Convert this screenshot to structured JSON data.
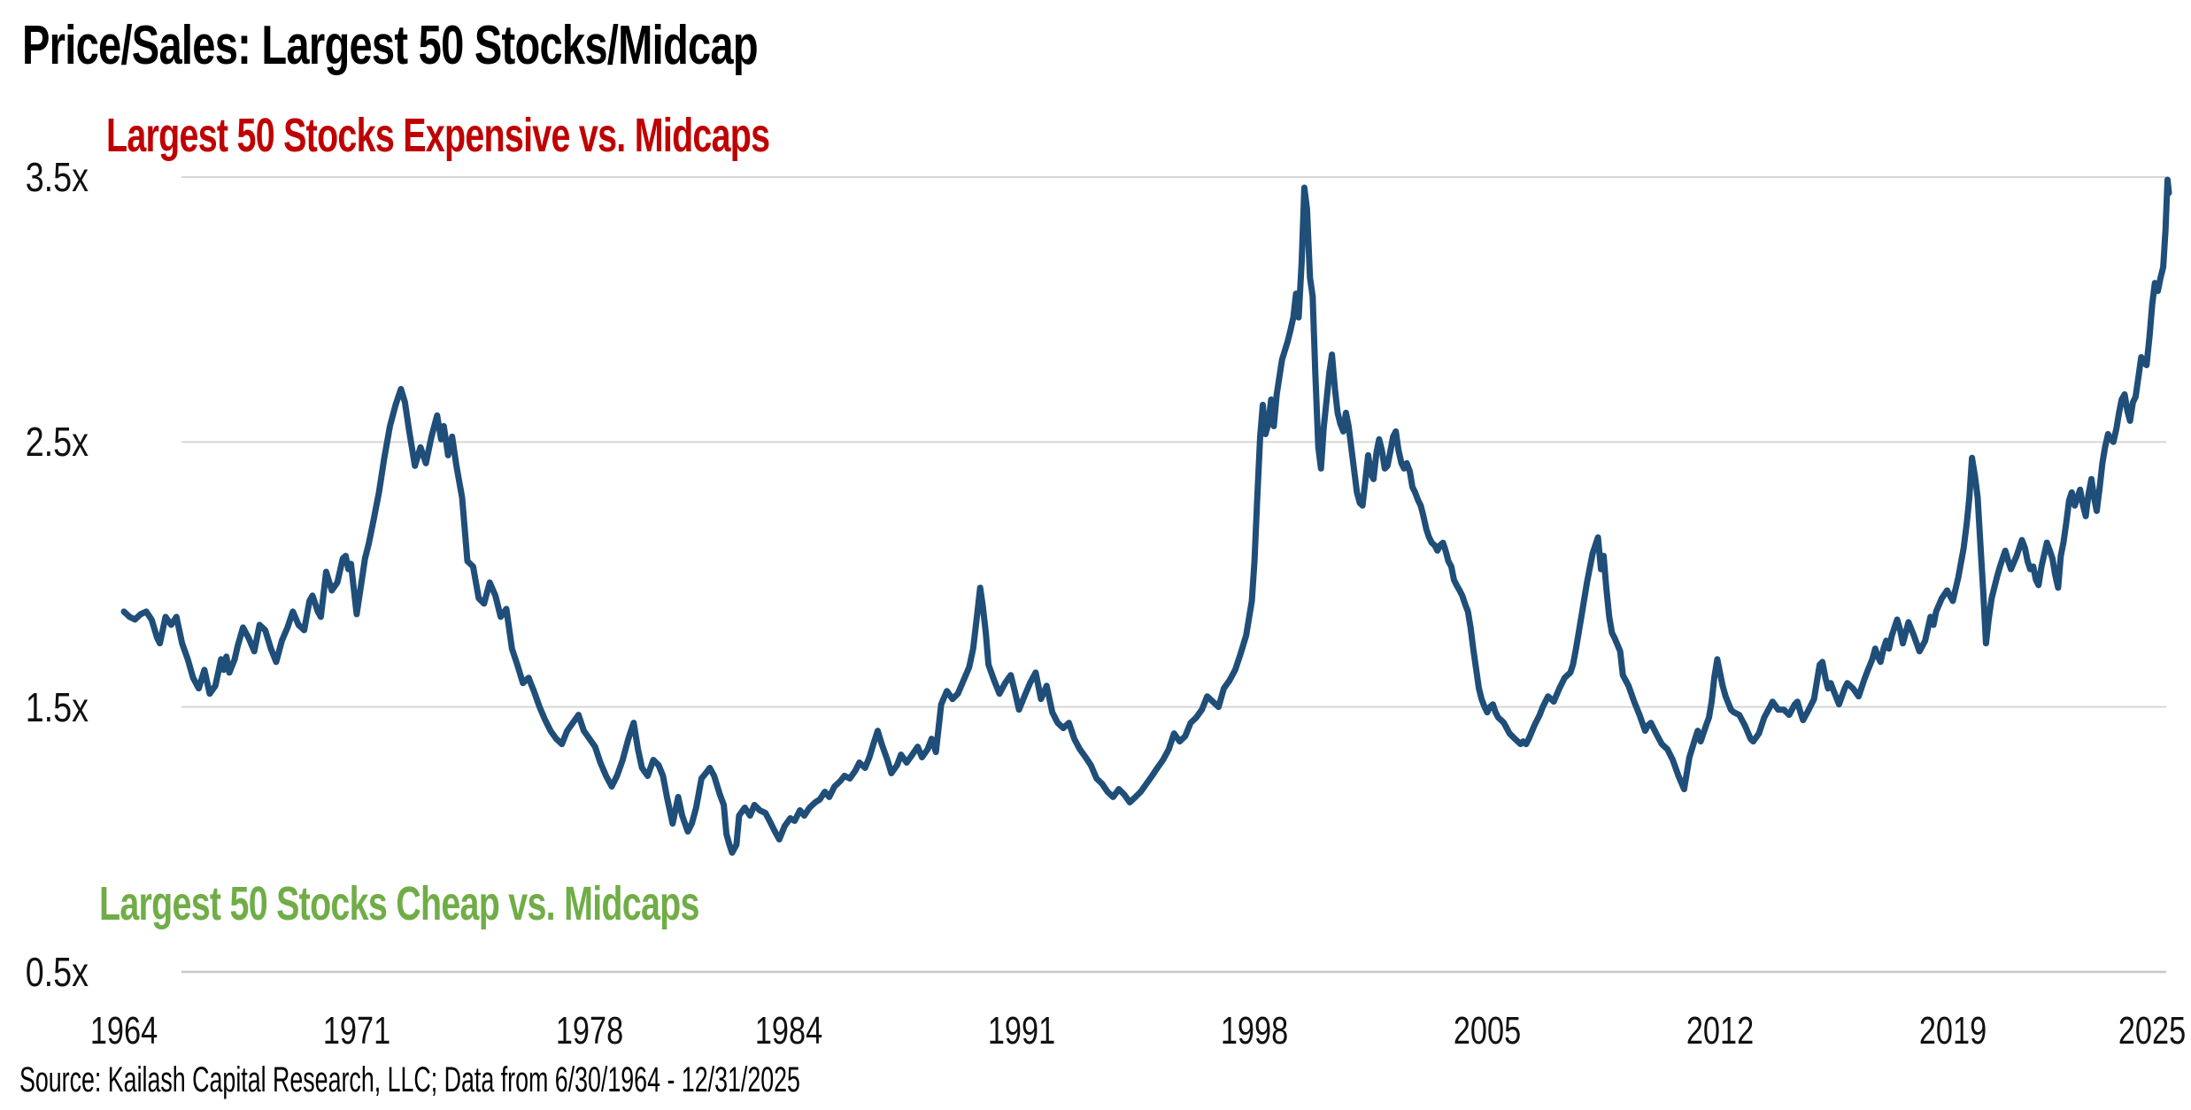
{
  "header": {
    "title": "Price/Sales: Largest 50 Stocks/Midcap"
  },
  "footer": {
    "source": "Source: Kailash Capital Research, LLC; Data from 6/30/1964 - 12/31/2025"
  },
  "chart_data": {
    "type": "line",
    "title": "Price/Sales: Largest 50 Stocks/Midcap",
    "xlabel": "",
    "ylabel": "",
    "legend": "none",
    "grid": "horizontal",
    "background_color": "#FFFFFF",
    "line_color": "#1F4E79",
    "gridline_color": "#D6D6D6",
    "bottom_gridline_color": "#C8C8C8",
    "xlim": [
      1964.5,
      2026.0
    ],
    "ylim": [
      0.5,
      3.5
    ],
    "x_ticks": [
      1964,
      1971,
      1978,
      1984,
      1991,
      1998,
      2005,
      2012,
      2019,
      2025
    ],
    "y_ticks": [
      {
        "value": 3.5,
        "label": "3.5x"
      },
      {
        "value": 2.5,
        "label": "2.5x"
      },
      {
        "value": 1.5,
        "label": "1.5x"
      },
      {
        "value": 0.5,
        "label": "0.5x"
      }
    ],
    "annotations": [
      {
        "text": "Largest 50 Stocks Expensive vs. Midcaps",
        "color": "#C00000",
        "position": "top-left"
      },
      {
        "text": "Largest 50 Stocks Cheap vs. Midcaps",
        "color": "#70AD47",
        "position": "bottom-left"
      }
    ],
    "series": [
      {
        "name": "Price/Sales: Largest 50 Stocks relative to Midcap",
        "color": "#1F4E79",
        "x": [
          1964.5,
          1964.67,
          1964.83,
          1965.0,
          1965.17,
          1965.33,
          1965.5,
          1965.58,
          1965.75,
          1965.92,
          1966.08,
          1966.25,
          1966.42,
          1966.58,
          1966.75,
          1966.92,
          1967.08,
          1967.25,
          1967.42,
          1967.5,
          1967.58,
          1967.67,
          1967.83,
          1967.92,
          1968.08,
          1968.25,
          1968.42,
          1968.58,
          1968.75,
          1968.92,
          1969.08,
          1969.25,
          1969.42,
          1969.58,
          1969.75,
          1969.92,
          1970.08,
          1970.17,
          1970.33,
          1970.42,
          1970.58,
          1970.75,
          1970.92,
          1971.08,
          1971.17,
          1971.25,
          1971.33,
          1971.5,
          1971.62,
          1971.75,
          1971.87,
          1972.0,
          1972.17,
          1972.33,
          1972.5,
          1972.67,
          1972.83,
          1972.95,
          1973.08,
          1973.25,
          1973.42,
          1973.58,
          1973.75,
          1973.92,
          1974.04,
          1974.12,
          1974.25,
          1974.37,
          1974.5,
          1974.67,
          1974.83,
          1975.0,
          1975.17,
          1975.33,
          1975.5,
          1975.67,
          1975.83,
          1976.0,
          1976.17,
          1976.33,
          1976.5,
          1976.67,
          1976.83,
          1977.0,
          1977.17,
          1977.33,
          1977.5,
          1977.67,
          1977.83,
          1978.0,
          1978.17,
          1978.33,
          1978.5,
          1978.67,
          1978.83,
          1979.0,
          1979.17,
          1979.33,
          1979.5,
          1979.67,
          1979.83,
          1979.96,
          1980.08,
          1980.25,
          1980.42,
          1980.58,
          1980.71,
          1980.83,
          1981.0,
          1981.17,
          1981.29,
          1981.46,
          1981.58,
          1981.71,
          1981.87,
          1982.0,
          1982.12,
          1982.25,
          1982.42,
          1982.54,
          1982.62,
          1982.71,
          1982.79,
          1982.92,
          1983.0,
          1983.17,
          1983.33,
          1983.46,
          1983.62,
          1983.79,
          1983.92,
          1984.08,
          1984.21,
          1984.37,
          1984.54,
          1984.67,
          1984.83,
          1984.96,
          1985.12,
          1985.29,
          1985.42,
          1985.58,
          1985.71,
          1985.87,
          1986.04,
          1986.17,
          1986.33,
          1986.5,
          1986.62,
          1986.79,
          1986.92,
          1987.04,
          1987.17,
          1987.29,
          1987.46,
          1987.58,
          1987.75,
          1987.87,
          1988.04,
          1988.21,
          1988.37,
          1988.5,
          1988.67,
          1988.79,
          1988.92,
          1989.08,
          1989.25,
          1989.42,
          1989.58,
          1989.75,
          1989.92,
          1990.04,
          1990.17,
          1990.25,
          1990.33,
          1990.42,
          1990.5,
          1990.67,
          1990.83,
          1991.0,
          1991.17,
          1991.29,
          1991.42,
          1991.58,
          1991.75,
          1991.92,
          1992.08,
          1992.25,
          1992.42,
          1992.58,
          1992.75,
          1992.92,
          1993.08,
          1993.25,
          1993.42,
          1993.58,
          1993.75,
          1993.92,
          1994.08,
          1994.25,
          1994.42,
          1994.58,
          1994.75,
          1994.92,
          1995.08,
          1995.25,
          1995.42,
          1995.58,
          1995.75,
          1995.92,
          1996.08,
          1996.25,
          1996.42,
          1996.58,
          1996.75,
          1996.92,
          1997.08,
          1997.25,
          1997.42,
          1997.58,
          1997.75,
          1997.92,
          1998.08,
          1998.25,
          1998.42,
          1998.5,
          1998.58,
          1998.67,
          1998.75,
          1998.83,
          1998.92,
          1999.0,
          1999.08,
          1999.17,
          1999.33,
          1999.5,
          1999.58,
          1999.67,
          1999.75,
          1999.83,
          1999.92,
          2000.0,
          2000.08,
          2000.17,
          2000.25,
          2000.33,
          2000.42,
          2000.5,
          2000.58,
          2000.67,
          2000.75,
          2000.83,
          2000.92,
          2001.0,
          2001.08,
          2001.17,
          2001.25,
          2001.33,
          2001.42,
          2001.5,
          2001.58,
          2001.67,
          2001.75,
          2001.83,
          2001.92,
          2002.0,
          2002.08,
          2002.17,
          2002.25,
          2002.33,
          2002.42,
          2002.5,
          2002.58,
          2002.67,
          2002.75,
          2002.83,
          2002.92,
          2003.0,
          2003.08,
          2003.17,
          2003.25,
          2003.33,
          2003.42,
          2003.5,
          2003.58,
          2003.67,
          2003.75,
          2003.83,
          2003.92,
          2004.0,
          2004.08,
          2004.17,
          2004.25,
          2004.33,
          2004.42,
          2004.5,
          2004.58,
          2004.67,
          2004.75,
          2004.83,
          2004.92,
          2005.0,
          2005.08,
          2005.17,
          2005.25,
          2005.33,
          2005.42,
          2005.5,
          2005.58,
          2005.67,
          2005.75,
          2005.83,
          2005.92,
          2006.0,
          2006.17,
          2006.33,
          2006.5,
          2006.58,
          2006.67,
          2006.75,
          2006.92,
          2007.08,
          2007.17,
          2007.33,
          2007.42,
          2007.5,
          2007.67,
          2007.83,
          2008.0,
          2008.08,
          2008.17,
          2008.33,
          2008.5,
          2008.67,
          2008.83,
          2008.92,
          2009.0,
          2009.08,
          2009.17,
          2009.25,
          2009.33,
          2009.5,
          2009.58,
          2009.75,
          2009.92,
          2010.08,
          2010.25,
          2010.33,
          2010.42,
          2010.58,
          2010.75,
          2010.92,
          2011.08,
          2011.25,
          2011.42,
          2011.5,
          2011.58,
          2011.75,
          2011.83,
          2011.92,
          2012.08,
          2012.17,
          2012.25,
          2012.33,
          2012.42,
          2012.5,
          2012.58,
          2012.67,
          2012.83,
          2012.92,
          2013.08,
          2013.25,
          2013.42,
          2013.5,
          2013.67,
          2013.83,
          2014.0,
          2014.08,
          2014.25,
          2014.42,
          2014.58,
          2014.75,
          2014.83,
          2014.92,
          2015.0,
          2015.17,
          2015.33,
          2015.42,
          2015.5,
          2015.58,
          2015.67,
          2015.75,
          2015.83,
          2015.92,
          2016.08,
          2016.25,
          2016.33,
          2016.5,
          2016.67,
          2016.83,
          2016.92,
          2017.08,
          2017.17,
          2017.25,
          2017.33,
          2017.42,
          2017.5,
          2017.58,
          2017.67,
          2017.83,
          2017.92,
          2018.0,
          2018.17,
          2018.33,
          2018.5,
          2018.67,
          2018.83,
          2018.92,
          2019.0,
          2019.17,
          2019.33,
          2019.5,
          2019.67,
          2019.83,
          2019.92,
          2020.0,
          2020.08,
          2020.17,
          2020.25,
          2020.33,
          2020.42,
          2020.5,
          2020.58,
          2020.67,
          2020.83,
          2020.92,
          2021.0,
          2021.08,
          2021.17,
          2021.25,
          2021.42,
          2021.58,
          2021.67,
          2021.75,
          2021.83,
          2021.92,
          2022.0,
          2022.08,
          2022.17,
          2022.33,
          2022.42,
          2022.5,
          2022.58,
          2022.67,
          2022.75,
          2022.83,
          2022.92,
          2023.0,
          2023.08,
          2023.17,
          2023.25,
          2023.33,
          2023.42,
          2023.5,
          2023.58,
          2023.67,
          2023.75,
          2023.83,
          2023.92,
          2024.0,
          2024.08,
          2024.17,
          2024.25,
          2024.33,
          2024.42,
          2024.5,
          2024.58,
          2024.67,
          2024.75,
          2024.83,
          2024.92,
          2025.0,
          2025.08,
          2025.17,
          2025.25,
          2025.33,
          2025.42,
          2025.5,
          2025.58,
          2025.67,
          2025.75,
          2025.83,
          2025.9,
          2025.96,
          2026.0
        ],
        "values": [
          1.86,
          1.84,
          1.83,
          1.85,
          1.86,
          1.83,
          1.76,
          1.74,
          1.84,
          1.81,
          1.84,
          1.74,
          1.68,
          1.61,
          1.57,
          1.64,
          1.55,
          1.58,
          1.68,
          1.64,
          1.69,
          1.63,
          1.68,
          1.73,
          1.8,
          1.76,
          1.71,
          1.81,
          1.79,
          1.72,
          1.67,
          1.75,
          1.8,
          1.86,
          1.81,
          1.79,
          1.9,
          1.92,
          1.86,
          1.84,
          2.01,
          1.94,
          1.97,
          2.06,
          2.07,
          2.02,
          2.04,
          1.85,
          1.95,
          2.06,
          2.12,
          2.2,
          2.31,
          2.44,
          2.56,
          2.64,
          2.7,
          2.65,
          2.54,
          2.41,
          2.48,
          2.42,
          2.52,
          2.6,
          2.51,
          2.56,
          2.45,
          2.52,
          2.41,
          2.29,
          2.05,
          2.03,
          1.91,
          1.89,
          1.97,
          1.92,
          1.84,
          1.87,
          1.72,
          1.66,
          1.59,
          1.61,
          1.56,
          1.5,
          1.45,
          1.41,
          1.38,
          1.36,
          1.41,
          1.44,
          1.47,
          1.41,
          1.38,
          1.35,
          1.29,
          1.24,
          1.2,
          1.24,
          1.3,
          1.38,
          1.44,
          1.34,
          1.27,
          1.24,
          1.3,
          1.28,
          1.24,
          1.16,
          1.06,
          1.16,
          1.09,
          1.03,
          1.06,
          1.12,
          1.23,
          1.25,
          1.27,
          1.24,
          1.17,
          1.13,
          1.02,
          0.98,
          0.95,
          0.98,
          1.09,
          1.12,
          1.09,
          1.13,
          1.11,
          1.1,
          1.07,
          1.03,
          1.0,
          1.05,
          1.08,
          1.07,
          1.11,
          1.09,
          1.12,
          1.14,
          1.15,
          1.18,
          1.16,
          1.2,
          1.22,
          1.24,
          1.23,
          1.26,
          1.29,
          1.27,
          1.31,
          1.36,
          1.41,
          1.36,
          1.3,
          1.25,
          1.28,
          1.32,
          1.29,
          1.32,
          1.35,
          1.31,
          1.34,
          1.38,
          1.33,
          1.51,
          1.56,
          1.53,
          1.55,
          1.6,
          1.65,
          1.72,
          1.86,
          1.95,
          1.88,
          1.78,
          1.66,
          1.6,
          1.55,
          1.59,
          1.62,
          1.56,
          1.49,
          1.54,
          1.59,
          1.63,
          1.53,
          1.58,
          1.48,
          1.44,
          1.42,
          1.44,
          1.38,
          1.34,
          1.31,
          1.28,
          1.23,
          1.21,
          1.18,
          1.16,
          1.19,
          1.17,
          1.14,
          1.16,
          1.18,
          1.21,
          1.24,
          1.27,
          1.3,
          1.34,
          1.4,
          1.37,
          1.39,
          1.44,
          1.46,
          1.49,
          1.54,
          1.52,
          1.5,
          1.57,
          1.6,
          1.64,
          1.7,
          1.77,
          1.9,
          2.05,
          2.28,
          2.52,
          2.64,
          2.53,
          2.57,
          2.66,
          2.56,
          2.68,
          2.81,
          2.88,
          2.92,
          2.97,
          3.06,
          2.97,
          3.18,
          3.46,
          3.38,
          3.12,
          3.05,
          2.76,
          2.48,
          2.4,
          2.55,
          2.66,
          2.76,
          2.83,
          2.7,
          2.61,
          2.57,
          2.54,
          2.61,
          2.56,
          2.47,
          2.39,
          2.31,
          2.27,
          2.26,
          2.35,
          2.45,
          2.38,
          2.36,
          2.46,
          2.51,
          2.47,
          2.4,
          2.41,
          2.46,
          2.52,
          2.54,
          2.47,
          2.42,
          2.4,
          2.42,
          2.39,
          2.33,
          2.31,
          2.28,
          2.26,
          2.22,
          2.17,
          2.14,
          2.12,
          2.11,
          2.09,
          2.11,
          2.12,
          2.09,
          2.05,
          2.03,
          1.98,
          1.96,
          1.94,
          1.92,
          1.89,
          1.86,
          1.8,
          1.72,
          1.64,
          1.57,
          1.53,
          1.5,
          1.48,
          1.5,
          1.51,
          1.48,
          1.46,
          1.45,
          1.44,
          1.4,
          1.38,
          1.36,
          1.37,
          1.36,
          1.38,
          1.43,
          1.47,
          1.5,
          1.54,
          1.53,
          1.52,
          1.57,
          1.61,
          1.63,
          1.66,
          1.72,
          1.84,
          1.97,
          2.08,
          2.14,
          2.02,
          2.07,
          1.95,
          1.84,
          1.78,
          1.76,
          1.71,
          1.62,
          1.58,
          1.52,
          1.47,
          1.41,
          1.43,
          1.44,
          1.4,
          1.36,
          1.34,
          1.3,
          1.24,
          1.19,
          1.25,
          1.31,
          1.38,
          1.41,
          1.37,
          1.43,
          1.46,
          1.52,
          1.61,
          1.68,
          1.63,
          1.58,
          1.54,
          1.49,
          1.48,
          1.47,
          1.43,
          1.38,
          1.37,
          1.4,
          1.46,
          1.5,
          1.52,
          1.49,
          1.49,
          1.47,
          1.51,
          1.52,
          1.48,
          1.45,
          1.49,
          1.53,
          1.6,
          1.66,
          1.67,
          1.61,
          1.57,
          1.59,
          1.56,
          1.51,
          1.57,
          1.59,
          1.57,
          1.54,
          1.6,
          1.63,
          1.68,
          1.72,
          1.69,
          1.67,
          1.72,
          1.75,
          1.72,
          1.77,
          1.83,
          1.79,
          1.74,
          1.82,
          1.77,
          1.71,
          1.75,
          1.84,
          1.81,
          1.86,
          1.91,
          1.94,
          1.9,
          1.99,
          2.1,
          2.19,
          2.29,
          2.44,
          2.37,
          2.29,
          2.12,
          1.93,
          1.74,
          1.83,
          1.91,
          1.99,
          2.03,
          2.06,
          2.09,
          2.05,
          2.02,
          2.07,
          2.13,
          2.1,
          2.05,
          2.02,
          2.03,
          1.98,
          1.96,
          2.03,
          2.12,
          2.09,
          2.06,
          2.0,
          1.95,
          2.07,
          2.12,
          2.2,
          2.28,
          2.31,
          2.26,
          2.29,
          2.32,
          2.26,
          2.22,
          2.3,
          2.36,
          2.29,
          2.24,
          2.33,
          2.42,
          2.48,
          2.53,
          2.51,
          2.5,
          2.55,
          2.61,
          2.66,
          2.68,
          2.62,
          2.58,
          2.65,
          2.67,
          2.74,
          2.82,
          2.8,
          2.79,
          2.9,
          3.02,
          3.1,
          3.07,
          3.12,
          3.16,
          3.3,
          3.49,
          3.44
        ]
      }
    ]
  }
}
